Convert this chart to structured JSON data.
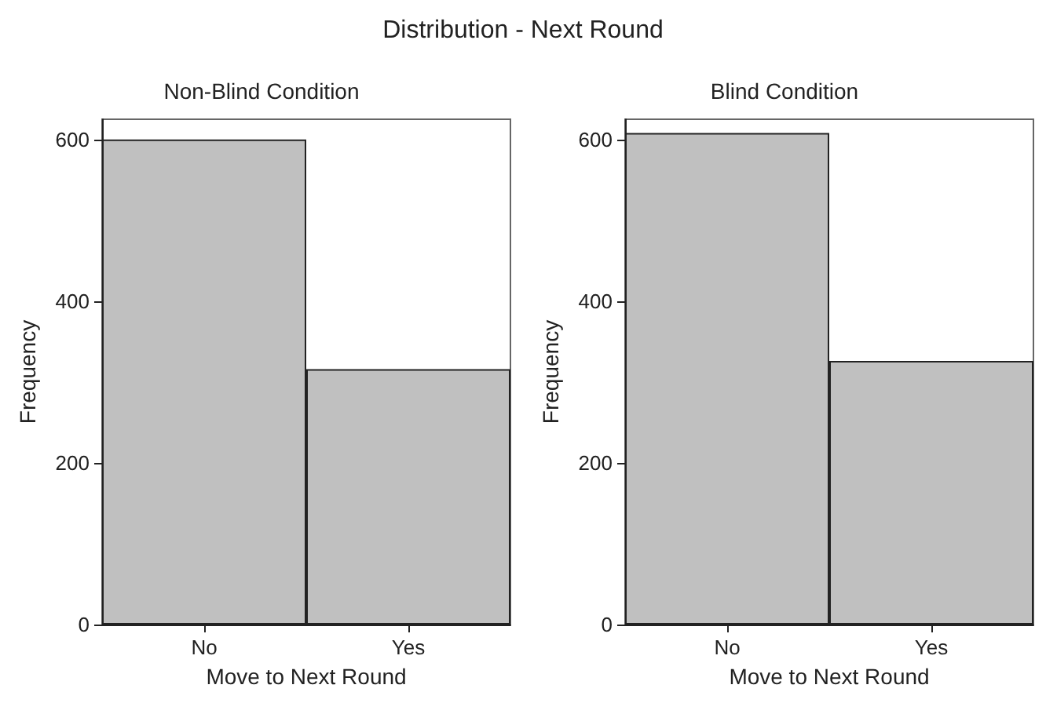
{
  "chart_data": [
    {
      "type": "bar",
      "title": "Non-Blind Condition",
      "annotations": [
        "Distribution - Next Round"
      ],
      "xlabel": "Move to Next Round",
      "ylabel": "Frequency",
      "categories": [
        "No",
        "Yes"
      ],
      "values": [
        600,
        316
      ],
      "color": "#c0c0c0",
      "ylim": [
        0,
        625
      ],
      "yticks": [
        0,
        200,
        400,
        600
      ],
      "grid": false
    },
    {
      "type": "bar",
      "title": "Blind Condition",
      "xlabel": "Move to Next Round",
      "ylabel": "Frequency",
      "categories": [
        "No",
        "Yes"
      ],
      "values": [
        608,
        326
      ],
      "color": "#c0c0c0",
      "ylim": [
        0,
        625
      ],
      "yticks": [
        0,
        200,
        400,
        600
      ],
      "grid": false
    }
  ]
}
